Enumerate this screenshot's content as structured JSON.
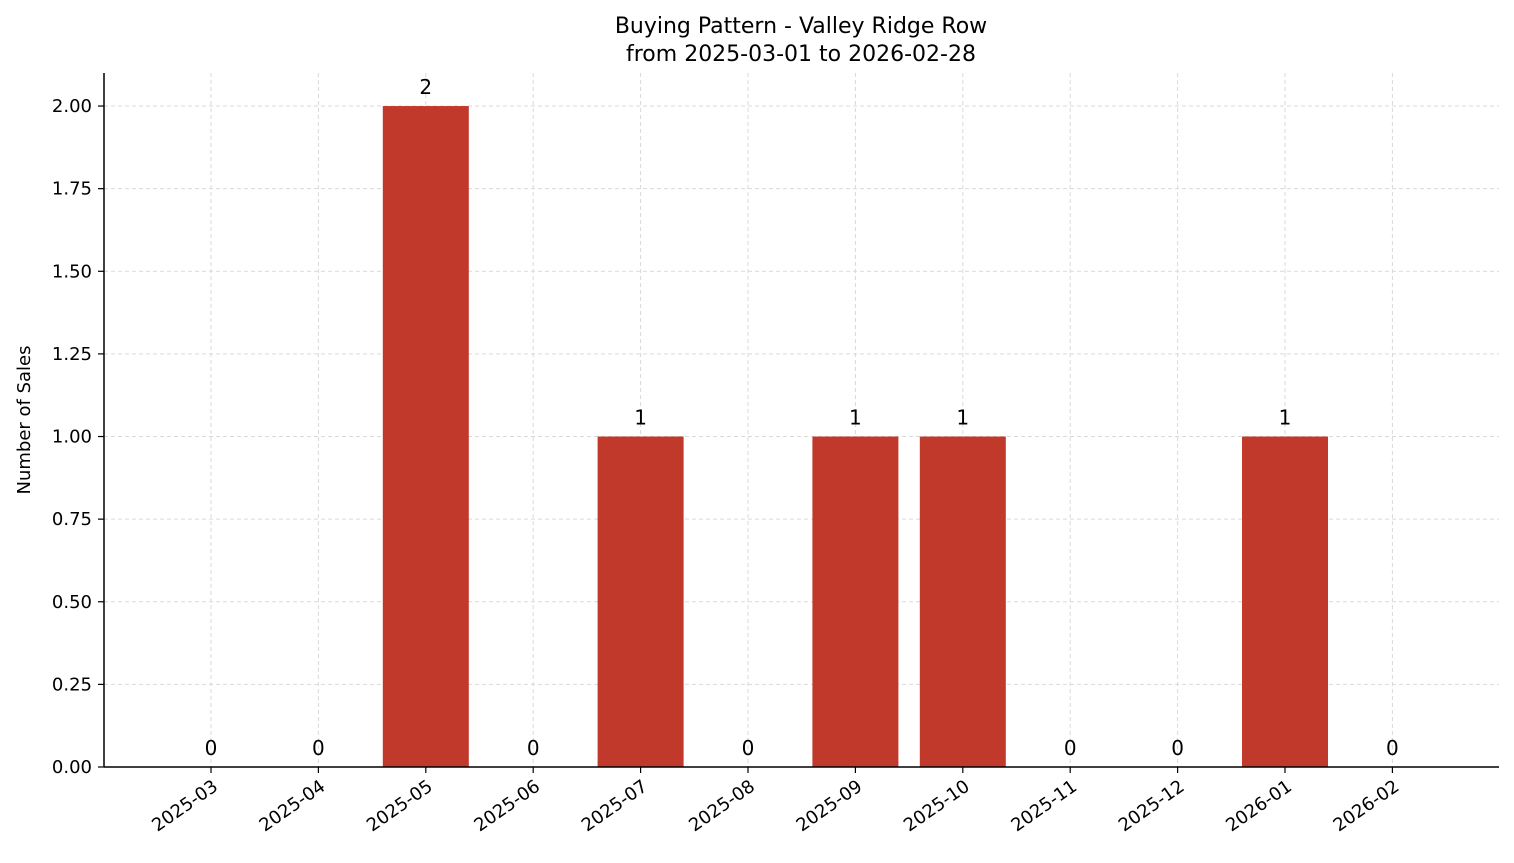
{
  "chart_data": {
    "type": "bar",
    "title": "Buying Pattern - Valley Ridge Row",
    "subtitle": "from 2025-03-01 to 2026-02-28",
    "xlabel": "",
    "ylabel": "Number of Sales",
    "categories": [
      "2025-03",
      "2025-04",
      "2025-05",
      "2025-06",
      "2025-07",
      "2025-08",
      "2025-09",
      "2025-10",
      "2025-11",
      "2025-12",
      "2026-01",
      "2026-02"
    ],
    "values": [
      0,
      0,
      2,
      0,
      1,
      0,
      1,
      1,
      0,
      0,
      1,
      0
    ],
    "data_labels": [
      "0",
      "0",
      "2",
      "0",
      "1",
      "0",
      "1",
      "1",
      "0",
      "0",
      "1",
      "0"
    ],
    "ylim": [
      0,
      2.1
    ],
    "yticks": [
      0,
      0.25,
      0.5,
      0.75,
      1.0,
      1.25,
      1.5,
      1.75,
      2.0
    ],
    "ytick_labels": [
      "0.00",
      "0.25",
      "0.50",
      "0.75",
      "1.00",
      "1.25",
      "1.50",
      "1.75",
      "2.00"
    ],
    "grid": true,
    "bar_color": "#c0392b",
    "grid_color": "#d9d9d9"
  }
}
